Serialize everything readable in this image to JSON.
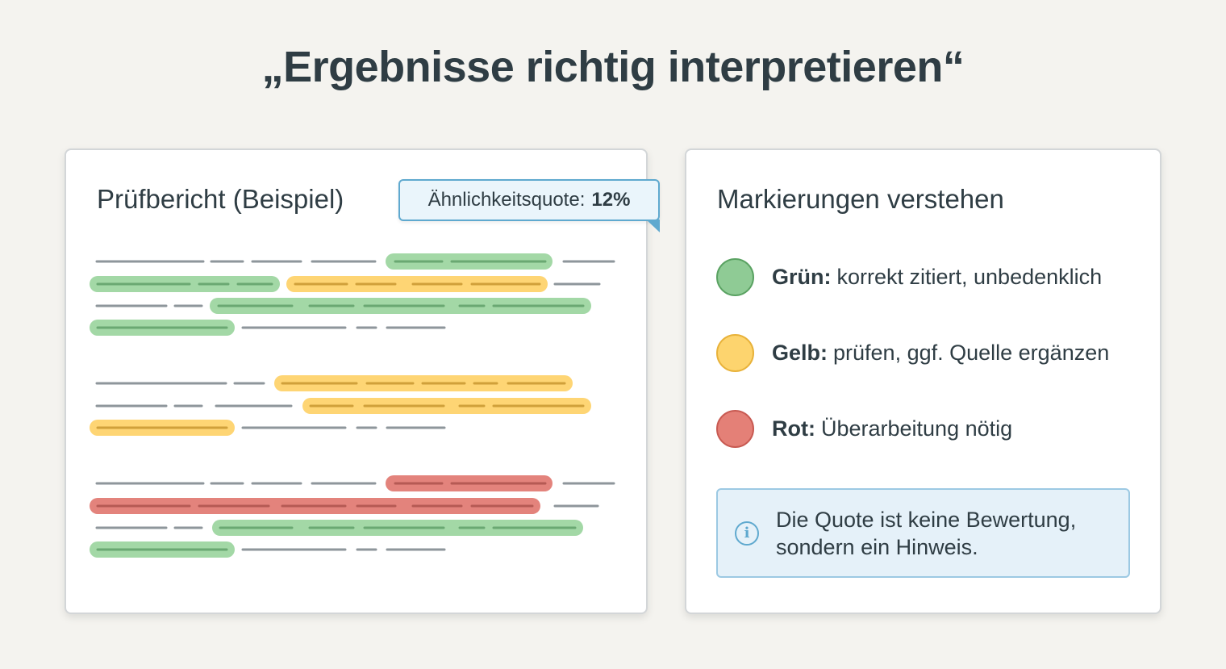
{
  "title": "„Ergebnisse richtig interpretieren“",
  "report": {
    "title": "Prüfbericht (Beispiel)",
    "quote_label": "Ähnlichkeitsquote:",
    "quote_value": "12%"
  },
  "legend": {
    "title": "Markierungen verstehen",
    "items": [
      {
        "label": "Grün:",
        "text": "korrekt zitiert, unbedenklich",
        "color": "#8fcb95",
        "border": "#5aa262"
      },
      {
        "label": "Gelb:",
        "text": "prüfen, ggf. Quelle ergänzen",
        "color": "#fdd46e",
        "border": "#e8b23a"
      },
      {
        "label": "Rot:",
        "text": "Überarbeitung nötig",
        "color": "#e48077",
        "border": "#c85a52"
      }
    ]
  },
  "info": {
    "icon": "info-icon",
    "line1": "Die Quote ist keine Bewertung,",
    "line2": "sondern ein Hinweis."
  },
  "colors": {
    "green": "#a3d8a6",
    "yellow": "#fed574",
    "red": "#e3837c",
    "text_line": "#8e969b"
  }
}
